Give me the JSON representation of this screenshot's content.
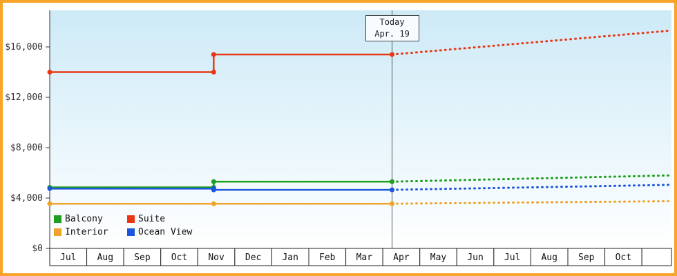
{
  "window": {
    "description": "Cruise cabin price history and forecast chart"
  },
  "chart_data": {
    "type": "line",
    "title": "",
    "xlabel": "",
    "ylabel": "",
    "grid": false,
    "legend_position": "bottom-left-inside",
    "x_categories": [
      "Jul",
      "Aug",
      "Sep",
      "Oct",
      "Nov",
      "Dec",
      "Jan",
      "Feb",
      "Mar",
      "Apr",
      "May",
      "Jun",
      "Jul",
      "Aug",
      "Sep",
      "Oct"
    ],
    "x_extent": 16.8,
    "ylim": [
      0,
      18900
    ],
    "yticks": [
      0,
      4000,
      8000,
      12000,
      16000
    ],
    "ytick_labels": [
      "$0",
      "$4,000",
      "$8,000",
      "$12,000",
      "$16,000"
    ],
    "today": {
      "label_line1": "Today",
      "label_line2": "Apr. 19",
      "x": 9.25
    },
    "series": [
      {
        "name": "Balcony",
        "color": "#1e9e20",
        "solid": [
          [
            0,
            4850
          ],
          [
            4.43,
            4850
          ],
          [
            4.43,
            5300
          ],
          [
            9.25,
            5300
          ]
        ],
        "projected_dotted": [
          [
            9.25,
            5300
          ],
          [
            16.8,
            5800
          ]
        ]
      },
      {
        "name": "Suite",
        "color": "#e93715",
        "solid": [
          [
            0,
            14000
          ],
          [
            4.43,
            14000
          ],
          [
            4.43,
            15400
          ],
          [
            9.25,
            15400
          ]
        ],
        "projected_dotted": [
          [
            9.25,
            15400
          ],
          [
            16.8,
            17300
          ]
        ]
      },
      {
        "name": "Interior",
        "color": "#efa32a",
        "solid": [
          [
            0,
            3550
          ],
          [
            4.43,
            3550
          ],
          [
            9.25,
            3550
          ]
        ],
        "projected_dotted": [
          [
            9.25,
            3550
          ],
          [
            16.8,
            3750
          ]
        ]
      },
      {
        "name": "Ocean View",
        "color": "#1c56dd",
        "solid": [
          [
            0,
            4750
          ],
          [
            4.43,
            4750
          ],
          [
            4.43,
            4650
          ],
          [
            9.25,
            4650
          ]
        ],
        "projected_dotted": [
          [
            9.25,
            4650
          ],
          [
            16.8,
            5050
          ]
        ]
      }
    ],
    "colors": {
      "frame_border": "#f7a428",
      "plot_bg_top": "#cdeaf7",
      "plot_bg_bottom": "#ffffff",
      "axis": "#333333",
      "today_line": "#555555",
      "cell_border": "#222222"
    }
  }
}
